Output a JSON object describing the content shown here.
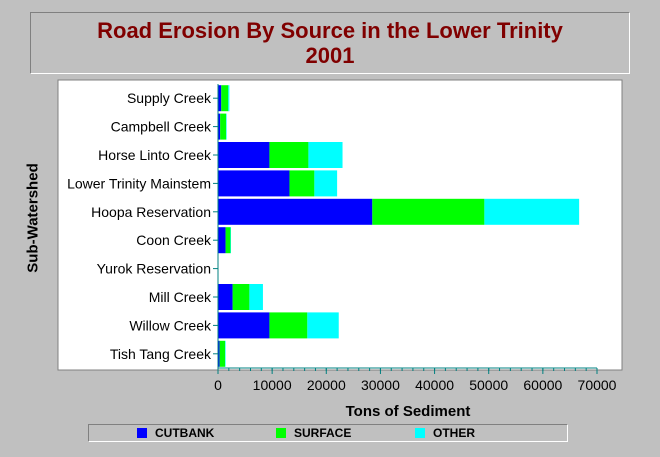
{
  "title": {
    "line1": "Road Erosion By Source in the Lower Trinity",
    "line2": "2001"
  },
  "chart_data": {
    "type": "bar",
    "orientation": "horizontal",
    "stacked": true,
    "title": "Road Erosion By Source in the Lower Trinity 2001",
    "xlabel": "Tons of Sediment",
    "ylabel": "Sub-Watershed",
    "xlim": [
      0,
      70000
    ],
    "xticks": [
      0,
      10000,
      20000,
      30000,
      40000,
      50000,
      60000,
      70000
    ],
    "grid": false,
    "legend_position": "bottom",
    "categories": [
      "Supply Creek",
      "Campbell Creek",
      "Horse Linto Creek",
      "Lower Trinity Mainstem",
      "Hoopa Reservation",
      "Coon Creek",
      "Yurok Reservation",
      "Mill Creek",
      "Willow Creek",
      "Tish Tang Creek"
    ],
    "series": [
      {
        "name": "CUTBANK",
        "color": "#0000ff",
        "values": [
          600,
          400,
          9500,
          13200,
          28500,
          1400,
          0,
          2700,
          9500,
          300
        ]
      },
      {
        "name": "SURFACE",
        "color": "#00ff00",
        "values": [
          1300,
          1100,
          7200,
          4600,
          20700,
          900,
          0,
          3100,
          7000,
          1000
        ]
      },
      {
        "name": "OTHER",
        "color": "#00ffff",
        "values": [
          200,
          100,
          6300,
          4200,
          17500,
          100,
          0,
          2500,
          5800,
          100
        ]
      }
    ]
  }
}
